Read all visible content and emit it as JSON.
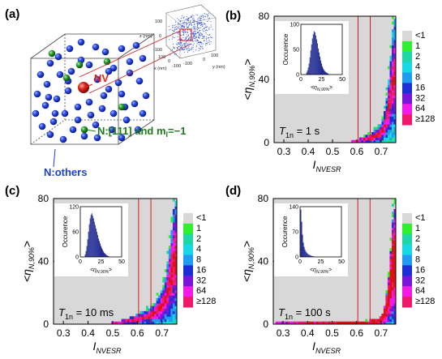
{
  "panel_a": {
    "label": "(a)",
    "nv_label": "NV",
    "n111_label_prefix": "N:[111] and m",
    "n111_label_sub": "I",
    "n111_label_suffix": "=−1",
    "nothers_label": "N:others",
    "inset_axes": {
      "x_label": "x (nm)",
      "y_label": "y (nm)",
      "z_label": "z (nm)",
      "x_ticks": [
        "100",
        "0",
        "-100"
      ],
      "y_ticks": [
        "-100",
        "0",
        "100"
      ],
      "z_ticks": [
        "100",
        "0",
        "-100"
      ]
    },
    "colors": {
      "nitrogen": "#1a3fd6",
      "n111": "#1f9a2c",
      "nv": "#e2231a",
      "label_n111": "#1e7a1e",
      "label_nothers": "#1a3fd6"
    }
  },
  "colorbar": {
    "labels": [
      "<1",
      "1",
      "2",
      "4",
      "8",
      "16",
      "32",
      "64",
      "≥128"
    ],
    "colors": [
      "#d8d8d8",
      "#2ef02e",
      "#1fd6a6",
      "#18d8e8",
      "#1f9bf0",
      "#1b2fd6",
      "#7a16d8",
      "#f21ae6",
      "#f0186a",
      "#e01010"
    ]
  },
  "chart_data": [
    {
      "type": "heatmap",
      "panel": "(b)",
      "xlabel_main": "I",
      "xlabel_sub": "NVESR",
      "ylabel_main": "<η",
      "ylabel_sub": "N,90%",
      "ylabel_end": ">",
      "xlim": [
        0.26,
        0.76
      ],
      "ylim": [
        0,
        80
      ],
      "x_ticks": [
        "0.3",
        "0.4",
        "0.5",
        "0.6",
        "0.7"
      ],
      "y_ticks": [
        "0",
        "40",
        "80"
      ],
      "vlines": [
        0.605,
        0.655
      ],
      "annotation_main": "T",
      "annotation_sub": "1n",
      "annotation_value": "= 1 s",
      "envelope_x": [
        0.58,
        0.62,
        0.66,
        0.69,
        0.71,
        0.72,
        0.73,
        0.74,
        0.75
      ],
      "envelope_y": [
        1,
        3,
        6,
        10,
        16,
        24,
        38,
        56,
        76
      ],
      "inset": {
        "type": "bar",
        "ylabel": "Occurence",
        "xlabel_main": "<η",
        "xlabel_sub": "N,90%",
        "xlabel_end": ">",
        "xlim": [
          0,
          50
        ],
        "ylim": [
          0,
          100
        ],
        "x_ticks": [
          "0",
          "25",
          "50"
        ],
        "y_ticks": [
          "0",
          "50",
          "100"
        ],
        "bin_centers": [
          7,
          8,
          9,
          10,
          11,
          12,
          13,
          14,
          15,
          16,
          17,
          18,
          19,
          20,
          21,
          22,
          23,
          24,
          25,
          26,
          27,
          28,
          29,
          30,
          31,
          32,
          33,
          34
        ],
        "values": [
          4,
          8,
          14,
          22,
          34,
          48,
          60,
          72,
          80,
          86,
          84,
          78,
          70,
          62,
          52,
          44,
          36,
          28,
          22,
          16,
          12,
          9,
          7,
          5,
          4,
          3,
          2,
          1
        ]
      }
    },
    {
      "type": "heatmap",
      "panel": "(c)",
      "xlabel_main": "I",
      "xlabel_sub": "NVESR",
      "ylabel_main": "<η",
      "ylabel_sub": "N,90%",
      "ylabel_end": ">",
      "xlim": [
        0.26,
        0.76
      ],
      "ylim": [
        0,
        80
      ],
      "x_ticks": [
        "0.3",
        "0.4",
        "0.5",
        "0.6",
        "0.7"
      ],
      "y_ticks": [
        "0",
        "40",
        "80"
      ],
      "vlines": [
        0.605,
        0.655
      ],
      "annotation_main": "T",
      "annotation_sub": "1n",
      "annotation_value": "= 10 ms",
      "envelope_x": [
        0.5,
        0.55,
        0.6,
        0.64,
        0.67,
        0.69,
        0.71,
        0.72,
        0.73,
        0.74,
        0.75
      ],
      "envelope_y": [
        1,
        3,
        6,
        9,
        13,
        18,
        25,
        34,
        46,
        60,
        76
      ],
      "inset": {
        "type": "bar",
        "ylabel": "Occurence",
        "xlabel_main": "<η",
        "xlabel_sub": "N,90%",
        "xlabel_end": ">",
        "xlim": [
          0,
          50
        ],
        "ylim": [
          0,
          120
        ],
        "x_ticks": [
          "0",
          "25",
          "50"
        ],
        "y_ticks": [
          "0",
          "60",
          "120"
        ],
        "bin_centers": [
          6,
          7,
          8,
          9,
          10,
          11,
          12,
          13,
          14,
          15,
          16,
          17,
          18,
          19,
          20,
          21,
          22,
          23,
          24,
          25,
          26,
          27,
          28,
          29,
          30,
          31,
          32,
          33,
          34,
          35
        ],
        "values": [
          6,
          14,
          26,
          42,
          60,
          78,
          92,
          100,
          104,
          98,
          92,
          84,
          76,
          68,
          60,
          52,
          44,
          38,
          32,
          26,
          21,
          17,
          13,
          10,
          8,
          6,
          4,
          3,
          2,
          1
        ]
      }
    },
    {
      "type": "heatmap",
      "panel": "(d)",
      "xlabel_main": "I",
      "xlabel_sub": "NVESR",
      "ylabel_main": "<η",
      "ylabel_sub": "N,90%",
      "ylabel_end": ">",
      "xlim": [
        0.26,
        0.76
      ],
      "ylim": [
        0,
        80
      ],
      "x_ticks": [
        "0.3",
        "0.4",
        "0.5",
        "0.6",
        "0.7"
      ],
      "y_ticks": [
        "0",
        "40",
        "80"
      ],
      "vlines": [
        0.605,
        0.655
      ],
      "annotation_main": "T",
      "annotation_sub": "1n",
      "annotation_value": "= 100 s",
      "envelope_x": [
        0.27,
        0.4,
        0.55,
        0.63,
        0.68,
        0.7,
        0.71,
        0.72,
        0.73,
        0.74,
        0.75
      ],
      "envelope_y": [
        1,
        1,
        1.5,
        2,
        3,
        5,
        9,
        16,
        28,
        48,
        72
      ],
      "inset": {
        "type": "bar",
        "ylabel": "Occurence",
        "xlabel_main": "<η",
        "xlabel_sub": "N,90%",
        "xlabel_end": ">",
        "xlim": [
          0,
          50
        ],
        "ylim": [
          0,
          140
        ],
        "x_ticks": [
          "0",
          "25",
          "50"
        ],
        "y_ticks": [
          "0",
          "70",
          "140"
        ],
        "bin_centers": [
          1,
          2,
          3,
          4,
          5,
          6,
          7,
          8,
          9,
          10,
          11,
          12,
          13,
          14,
          15,
          16,
          17,
          18
        ],
        "values": [
          132,
          98,
          62,
          40,
          28,
          20,
          15,
          12,
          9,
          7,
          6,
          5,
          4,
          3,
          2,
          2,
          1,
          1
        ]
      }
    }
  ]
}
